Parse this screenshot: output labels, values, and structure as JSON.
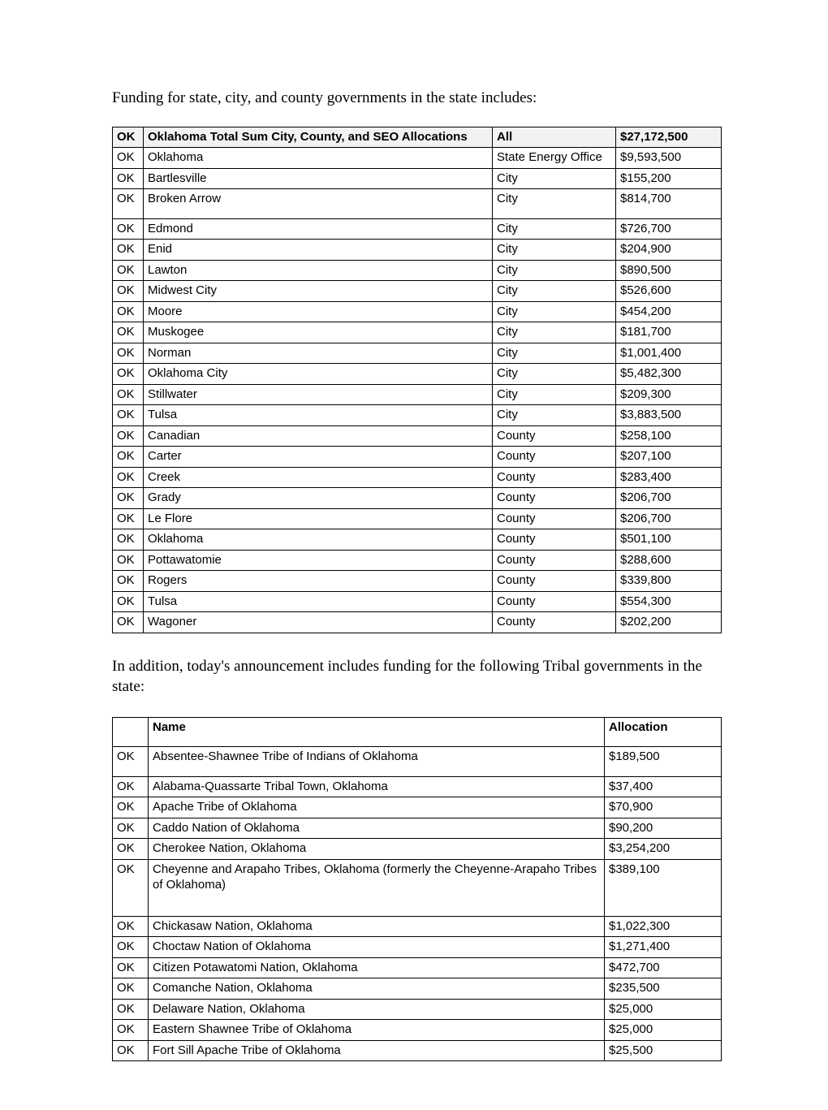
{
  "intro1": "Funding for state, city, and county governments in the state includes:",
  "intro2": "In addition, today's announcement includes funding for the following Tribal governments in the state:",
  "table1": {
    "header": {
      "c1": "OK",
      "c2": "Oklahoma Total Sum City, County, and SEO Allocations",
      "c3": "All",
      "c4": "$27,172,500"
    },
    "rows": [
      {
        "state": "OK",
        "name": "Oklahoma",
        "type": "State Energy Office",
        "amount": "$9,593,500"
      },
      {
        "state": "OK",
        "name": "Bartlesville",
        "type": "City",
        "amount": "$155,200"
      },
      {
        "state": "OK",
        "name": "Broken Arrow",
        "type": "City",
        "amount": "$814,700",
        "tall": true
      },
      {
        "state": "OK",
        "name": "Edmond",
        "type": "City",
        "amount": "$726,700"
      },
      {
        "state": "OK",
        "name": "Enid",
        "type": "City",
        "amount": "$204,900"
      },
      {
        "state": "OK",
        "name": "Lawton",
        "type": "City",
        "amount": "$890,500"
      },
      {
        "state": "OK",
        "name": "Midwest City",
        "type": "City",
        "amount": "$526,600"
      },
      {
        "state": "OK",
        "name": "Moore",
        "type": "City",
        "amount": "$454,200"
      },
      {
        "state": "OK",
        "name": "Muskogee",
        "type": "City",
        "amount": "$181,700"
      },
      {
        "state": "OK",
        "name": "Norman",
        "type": "City",
        "amount": "$1,001,400"
      },
      {
        "state": "OK",
        "name": "Oklahoma City",
        "type": "City",
        "amount": "$5,482,300"
      },
      {
        "state": "OK",
        "name": "Stillwater",
        "type": "City",
        "amount": "$209,300"
      },
      {
        "state": "OK",
        "name": "Tulsa",
        "type": "City",
        "amount": "$3,883,500"
      },
      {
        "state": "OK",
        "name": "Canadian",
        "type": "County",
        "amount": "$258,100"
      },
      {
        "state": "OK",
        "name": "Carter",
        "type": "County",
        "amount": "$207,100"
      },
      {
        "state": "OK",
        "name": "Creek",
        "type": "County",
        "amount": "$283,400"
      },
      {
        "state": "OK",
        "name": "Grady",
        "type": "County",
        "amount": "$206,700"
      },
      {
        "state": "OK",
        "name": "Le Flore",
        "type": "County",
        "amount": "$206,700"
      },
      {
        "state": "OK",
        "name": "Oklahoma",
        "type": "County",
        "amount": "$501,100"
      },
      {
        "state": "OK",
        "name": "Pottawatomie",
        "type": "County",
        "amount": "$288,600"
      },
      {
        "state": "OK",
        "name": "Rogers",
        "type": "County",
        "amount": "$339,800"
      },
      {
        "state": "OK",
        "name": "Tulsa",
        "type": "County",
        "amount": "$554,300"
      },
      {
        "state": "OK",
        "name": "Wagoner",
        "type": "County",
        "amount": "$202,200"
      }
    ]
  },
  "table2": {
    "header": {
      "c1": "",
      "c2": "Name",
      "c3": "Allocation"
    },
    "rows": [
      {
        "state": "OK",
        "name": "Absentee-Shawnee Tribe of Indians of Oklahoma",
        "amount": "$189,500",
        "tall": true
      },
      {
        "state": "OK",
        "name": "Alabama-Quassarte Tribal Town, Oklahoma",
        "amount": "$37,400"
      },
      {
        "state": "OK",
        "name": "Apache Tribe of Oklahoma",
        "amount": "$70,900"
      },
      {
        "state": "OK",
        "name": "Caddo Nation of Oklahoma",
        "amount": "$90,200"
      },
      {
        "state": "OK",
        "name": "Cherokee Nation, Oklahoma",
        "amount": "$3,254,200"
      },
      {
        "state": "OK",
        "name": "Cheyenne and Arapaho Tribes, Oklahoma (formerly the Cheyenne-Arapaho Tribes of Oklahoma)",
        "amount": "$389,100",
        "taller": true
      },
      {
        "state": "OK",
        "name": "Chickasaw Nation, Oklahoma",
        "amount": "$1,022,300"
      },
      {
        "state": "OK",
        "name": "Choctaw Nation of Oklahoma",
        "amount": "$1,271,400"
      },
      {
        "state": "OK",
        "name": "Citizen Potawatomi Nation, Oklahoma",
        "amount": "$472,700"
      },
      {
        "state": "OK",
        "name": "Comanche Nation, Oklahoma",
        "amount": "$235,500"
      },
      {
        "state": "OK",
        "name": "Delaware Nation, Oklahoma",
        "amount": "$25,000"
      },
      {
        "state": "OK",
        "name": "Eastern Shawnee Tribe of Oklahoma",
        "amount": "$25,000"
      },
      {
        "state": "OK",
        "name": "Fort Sill Apache Tribe of Oklahoma",
        "amount": "$25,500"
      }
    ]
  }
}
